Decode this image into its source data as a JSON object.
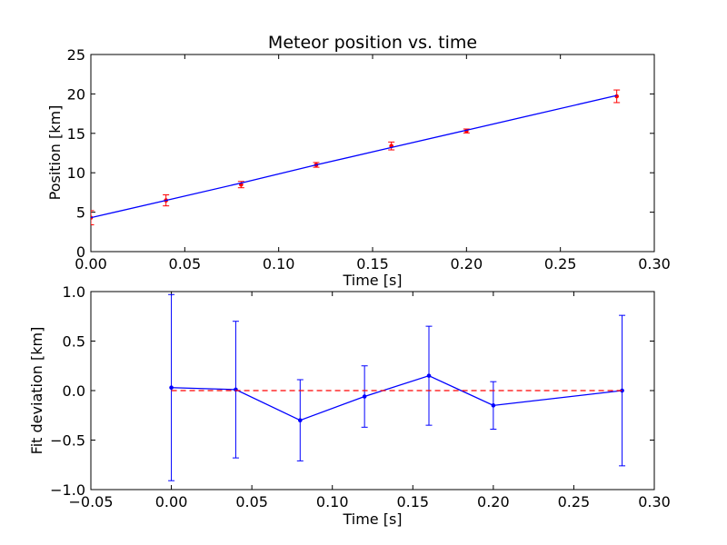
{
  "chart_data": [
    {
      "type": "line",
      "title": "Meteor position vs. time",
      "xlabel": "Time [s]",
      "ylabel": "Position [km]",
      "xlim": [
        0.0,
        0.3
      ],
      "ylim": [
        0,
        25
      ],
      "xticks": [
        "0.00",
        "0.05",
        "0.10",
        "0.15",
        "0.20",
        "0.25",
        "0.30"
      ],
      "yticks": [
        "0",
        "5",
        "10",
        "15",
        "20",
        "25"
      ],
      "grid": false,
      "series": [
        {
          "kind": "errorbar-points",
          "color": "#ff0000",
          "x": [
            0.0,
            0.04,
            0.08,
            0.12,
            0.16,
            0.2,
            0.28
          ],
          "y": [
            4.3,
            6.5,
            8.5,
            11.0,
            13.4,
            15.3,
            19.7
          ],
          "yerr": [
            0.9,
            0.7,
            0.4,
            0.3,
            0.5,
            0.25,
            0.8
          ]
        },
        {
          "kind": "line",
          "color": "#0000ff",
          "x": [
            0.0,
            0.04,
            0.08,
            0.12,
            0.16,
            0.2,
            0.28
          ],
          "y": [
            4.3,
            6.5,
            8.7,
            11.0,
            13.2,
            15.4,
            19.8
          ]
        }
      ]
    },
    {
      "type": "line",
      "title": "",
      "xlabel": "Time [s]",
      "ylabel": "Fit deviation [km]",
      "xlim": [
        -0.05,
        0.3
      ],
      "ylim": [
        -1.0,
        1.0
      ],
      "xticks": [
        "−0.05",
        "0.00",
        "0.05",
        "0.10",
        "0.15",
        "0.20",
        "0.25",
        "0.30"
      ],
      "yticks": [
        "−1.0",
        "−0.5",
        "0.0",
        "0.5",
        "1.0"
      ],
      "grid": false,
      "series": [
        {
          "kind": "errorbar-line",
          "color": "#0000ff",
          "x": [
            0.0,
            0.04,
            0.08,
            0.12,
            0.16,
            0.2,
            0.28
          ],
          "y": [
            0.03,
            0.01,
            -0.3,
            -0.06,
            0.15,
            -0.15,
            0.0
          ],
          "yerr": [
            0.94,
            0.69,
            0.41,
            0.31,
            0.5,
            0.24,
            0.76
          ]
        },
        {
          "kind": "reference-line",
          "color": "#ff0000",
          "x": [
            0.0,
            0.28
          ],
          "y": [
            0.0,
            0.0
          ]
        }
      ]
    }
  ]
}
